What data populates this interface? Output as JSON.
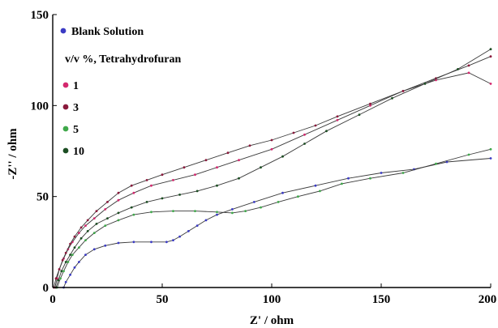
{
  "chart_data": {
    "type": "line",
    "xlabel": "Z' / ohm",
    "ylabel": "-Z'' / ohm",
    "xlim": [
      0,
      200
    ],
    "ylim": [
      0,
      150
    ],
    "x_ticks": [
      0,
      50,
      100,
      150,
      200
    ],
    "y_ticks": [
      0,
      50,
      100,
      150
    ],
    "grid": false,
    "legend_position": "top-left",
    "legend_subtitle": "v/v %, Tetrahydrofuran",
    "series": [
      {
        "name": "Blank Solution",
        "color": "#3b3bc4",
        "x": [
          5,
          6,
          8,
          10,
          12,
          15,
          19,
          24,
          30,
          37,
          45,
          52,
          55,
          58,
          62,
          66,
          70,
          75,
          82,
          92,
          105,
          120,
          135,
          150,
          165,
          180,
          200
        ],
        "y": [
          0,
          3,
          7,
          11,
          14,
          18,
          21,
          23,
          24.5,
          25,
          25,
          25,
          26,
          28,
          31,
          34,
          37,
          40,
          43,
          47,
          52,
          56,
          60,
          63,
          65,
          69,
          71
        ]
      },
      {
        "name": "1",
        "color": "#d4286e",
        "x": [
          1,
          2,
          3,
          5,
          7,
          9,
          12,
          15,
          19,
          24,
          30,
          37,
          45,
          55,
          65,
          75,
          85,
          100,
          115,
          130,
          145,
          160,
          175,
          190,
          200
        ],
        "y": [
          0,
          5,
          10,
          16,
          21,
          25,
          30,
          34,
          38,
          43,
          48,
          52,
          56,
          59,
          62,
          66,
          70,
          76,
          84,
          92,
          100,
          108,
          114,
          118,
          112
        ]
      },
      {
        "name": "3",
        "color": "#8a1a3c",
        "x": [
          0.5,
          1.5,
          3,
          4.5,
          6,
          8,
          10,
          13,
          16,
          20,
          25,
          30,
          36,
          43,
          50,
          60,
          70,
          80,
          90,
          100,
          110,
          120,
          130,
          145,
          160,
          175,
          190,
          200
        ],
        "y": [
          0,
          5,
          10,
          15,
          19,
          24,
          28,
          33,
          37,
          42,
          47,
          52,
          56,
          59,
          62,
          66,
          70,
          74,
          78,
          81,
          85,
          89,
          94,
          101,
          108,
          115,
          122,
          127
        ]
      },
      {
        "name": "5",
        "color": "#3fa84a",
        "x": [
          2,
          3.5,
          5,
          7,
          9,
          12,
          15,
          19,
          24,
          30,
          37,
          45,
          55,
          65,
          75,
          82,
          88,
          95,
          103,
          112,
          122,
          132,
          145,
          160,
          175,
          190,
          200
        ],
        "y": [
          0,
          5,
          9,
          14,
          18,
          22,
          26,
          30,
          34,
          37,
          40,
          41.5,
          42,
          42,
          41.5,
          41,
          42,
          44,
          47,
          50,
          53,
          57,
          60,
          63,
          68,
          73,
          76
        ]
      },
      {
        "name": "10",
        "color": "#1b4d22",
        "x": [
          1.5,
          2.5,
          4,
          6,
          8,
          10,
          13,
          16,
          20,
          25,
          30,
          36,
          43,
          50,
          58,
          66,
          75,
          85,
          95,
          105,
          115,
          125,
          140,
          155,
          170,
          185,
          200
        ],
        "y": [
          0,
          4,
          9,
          14,
          18,
          22,
          27,
          31,
          35,
          38,
          41,
          44,
          47,
          49,
          51,
          53,
          56,
          60,
          66,
          72,
          79,
          86,
          95,
          104,
          112,
          120,
          131
        ]
      }
    ]
  }
}
